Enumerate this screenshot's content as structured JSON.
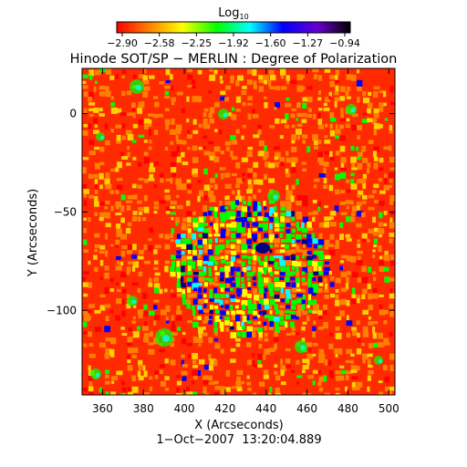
{
  "colorbar": {
    "label_main": "Log",
    "label_sub": "10",
    "ticks": [
      "−2.90",
      "−2.58",
      "−2.25",
      "−1.92",
      "−1.60",
      "−1.27",
      "−0.94"
    ],
    "range": [
      -2.9,
      -0.94
    ],
    "colormap": [
      "#ff0000",
      "#ff8000",
      "#ffff00",
      "#00ff00",
      "#00ffff",
      "#0000ff",
      "#6600cc",
      "#000000"
    ]
  },
  "title": "Hinode SOT/SP − MERLIN : Degree of Polarization",
  "xlabel": "X (Arcseconds)",
  "ylabel": "Y (Arcseconds)",
  "x_ticks": [
    "360",
    "380",
    "400",
    "420",
    "440",
    "460",
    "480",
    "500"
  ],
  "x_tick_values": [
    360,
    380,
    400,
    420,
    440,
    460,
    480,
    500
  ],
  "y_ticks": [
    "0",
    "−50",
    "−100"
  ],
  "y_tick_values": [
    0,
    -50,
    -100
  ],
  "x_range": [
    350,
    503
  ],
  "y_range": [
    -143,
    23
  ],
  "timestamp": "1−Oct−2007  13:20:04.889",
  "image": {
    "description_none": "",
    "colors": {
      "background_level": "#ff3000",
      "mid_level": "#00ff00",
      "high_level": "#0000ff",
      "peak_level": "#000080"
    }
  }
}
